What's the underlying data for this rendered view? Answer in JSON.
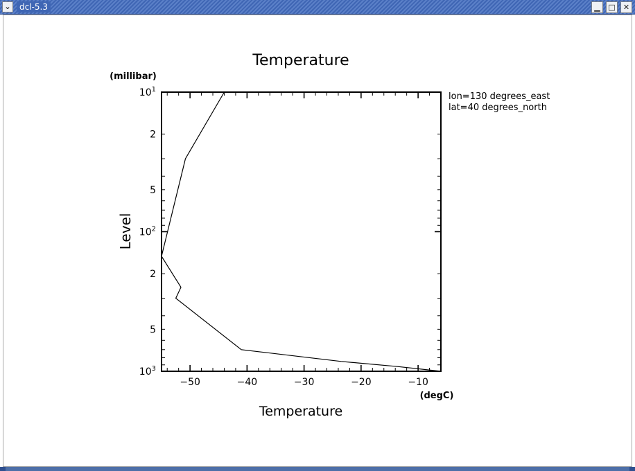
{
  "window": {
    "title": "dcl-5.3",
    "menu_glyph": "⌄",
    "minimize_glyph": "▁",
    "maximize_glyph": "□",
    "close_glyph": "✕"
  },
  "chart_data": {
    "type": "line",
    "title": "Temperature",
    "xlabel": "Temperature",
    "xunit": "(degC)",
    "ylabel": "Level",
    "yunit": "(millibar)",
    "xlim": [
      -55,
      -6
    ],
    "ylim": [
      1000,
      10
    ],
    "yscale": "log",
    "x_major_ticks": [
      -50,
      -40,
      -30,
      -20,
      -10
    ],
    "y_tick_labels": [
      {
        "value": 10,
        "mant": "10",
        "exp": "1"
      },
      {
        "value": 20,
        "mant": "2",
        "exp": ""
      },
      {
        "value": 50,
        "mant": "5",
        "exp": ""
      },
      {
        "value": 100,
        "mant": "10",
        "exp": "2"
      },
      {
        "value": 200,
        "mant": "2",
        "exp": ""
      },
      {
        "value": 500,
        "mant": "5",
        "exp": ""
      },
      {
        "value": 1000,
        "mant": "10",
        "exp": "3"
      }
    ],
    "annotations": [
      "lon=130 degrees_east",
      "lat=40 degrees_north"
    ],
    "grid": false,
    "series": [
      {
        "x": [
          -6,
          -13.6,
          -23.5,
          -41,
          -52.5,
          -51.6,
          -55,
          -50.8,
          -44
        ],
        "y": [
          1000,
          925,
          850,
          700,
          300,
          250,
          150,
          30,
          10
        ]
      }
    ]
  }
}
